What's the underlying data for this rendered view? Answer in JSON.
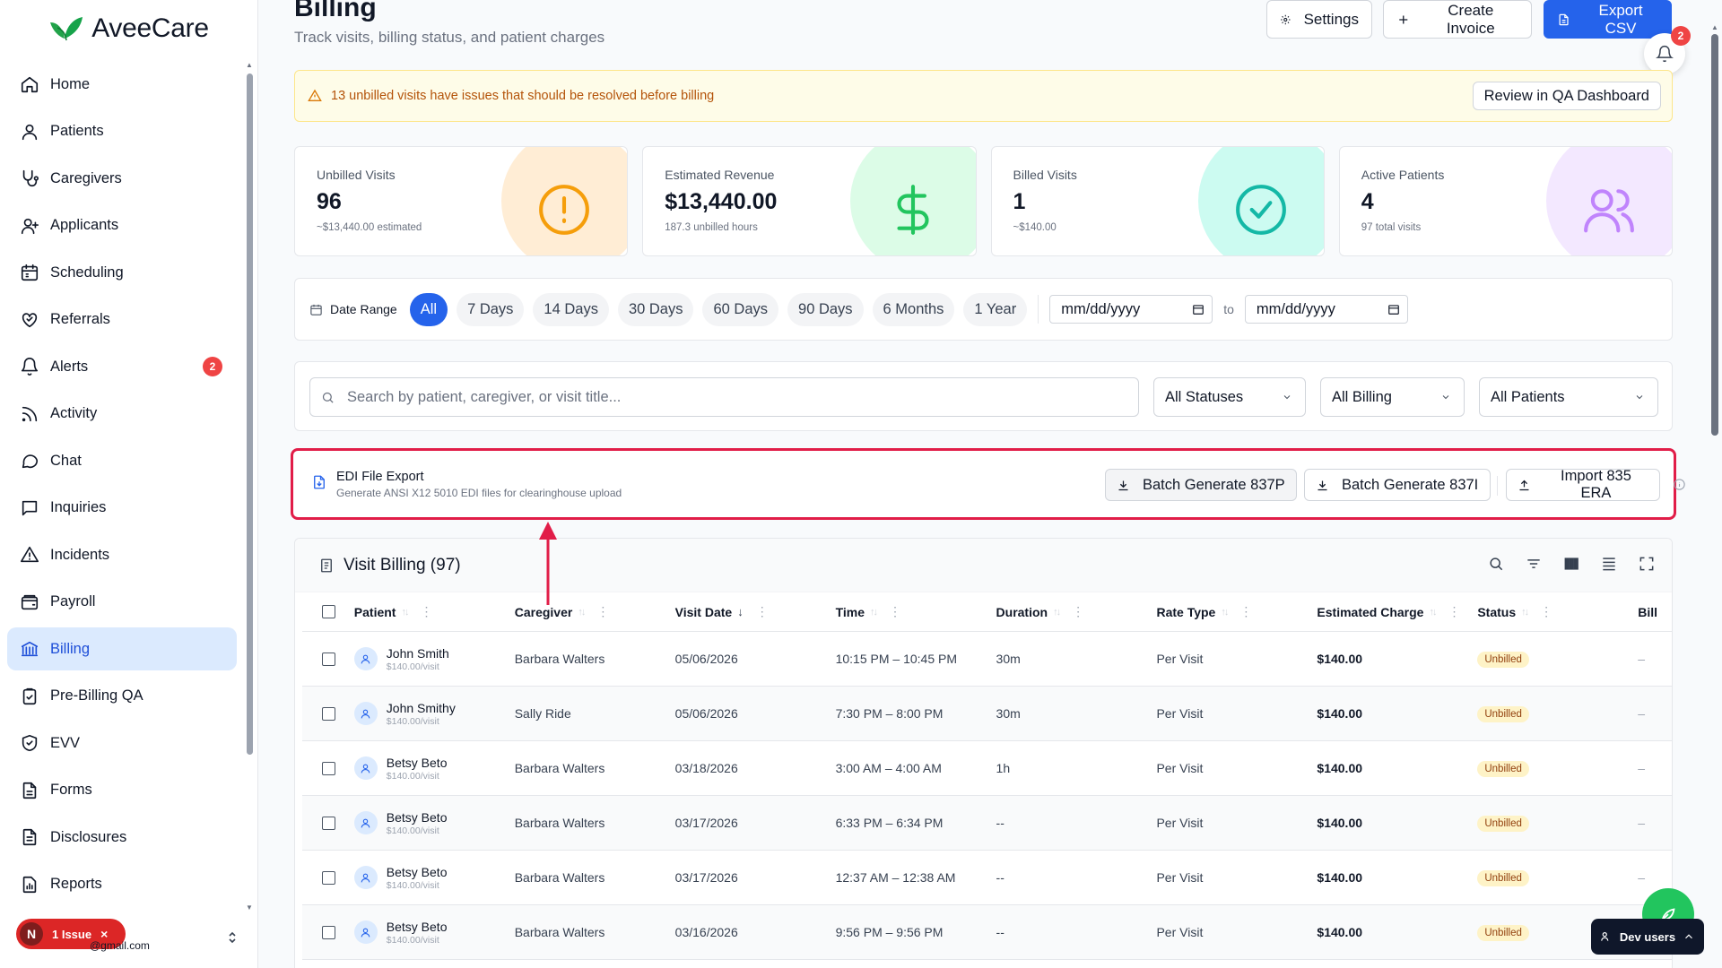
{
  "brand": {
    "name": "AveeCare"
  },
  "sidebar": {
    "items": [
      {
        "label": "Home",
        "icon": "home-icon"
      },
      {
        "label": "Patients",
        "icon": "user-icon"
      },
      {
        "label": "Caregivers",
        "icon": "stethoscope-icon"
      },
      {
        "label": "Applicants",
        "icon": "user-plus-icon"
      },
      {
        "label": "Scheduling",
        "icon": "calendar-icon"
      },
      {
        "label": "Referrals",
        "icon": "handshake-icon"
      },
      {
        "label": "Alerts",
        "icon": "bell-icon",
        "badge": "2"
      },
      {
        "label": "Activity",
        "icon": "rss-icon"
      },
      {
        "label": "Chat",
        "icon": "chat-bubble-icon"
      },
      {
        "label": "Inquiries",
        "icon": "message-square-icon"
      },
      {
        "label": "Incidents",
        "icon": "alert-triangle-icon"
      },
      {
        "label": "Payroll",
        "icon": "wallet-icon"
      },
      {
        "label": "Billing",
        "icon": "bank-icon",
        "active": true
      },
      {
        "label": "Pre-Billing QA",
        "icon": "clipboard-check-icon"
      },
      {
        "label": "EVV",
        "icon": "shield-check-icon"
      },
      {
        "label": "Forms",
        "icon": "file-text-icon"
      },
      {
        "label": "Disclosures",
        "icon": "file-icon"
      },
      {
        "label": "Reports",
        "icon": "report-icon"
      }
    ],
    "issue": {
      "avatar": "N",
      "label": "1 Issue",
      "close": "×"
    },
    "user_email": "@gmail.com"
  },
  "header": {
    "title": "Billing",
    "subtitle": "Track visits, billing status, and patient charges",
    "settings_label": "Settings",
    "create_invoice_label": "Create Invoice",
    "export_csv_label": "Export CSV",
    "notifications_count": "2"
  },
  "warning": {
    "text": "13 unbilled visits have issues that should be resolved before billing",
    "button": "Review in QA Dashboard"
  },
  "stats": [
    {
      "label": "Unbilled Visits",
      "value": "96",
      "sub": "~$13,440.00 estimated",
      "icon": "alert-circle-icon",
      "color": "#f59e0b",
      "bg": "#ffedd5"
    },
    {
      "label": "Estimated Revenue",
      "value": "$13,440.00",
      "sub": "187.3 unbilled hours",
      "icon": "dollar-icon",
      "color": "#22c55e",
      "bg": "#dcfce7"
    },
    {
      "label": "Billed Visits",
      "value": "1",
      "sub": "~$140.00",
      "icon": "check-circle-icon",
      "color": "#14b8a6",
      "bg": "#ccfbf1"
    },
    {
      "label": "Active Patients",
      "value": "4",
      "sub": "97 total visits",
      "icon": "users-icon",
      "color": "#c084fc",
      "bg": "#f3e8ff"
    }
  ],
  "date_range": {
    "label": "Date Range",
    "options": [
      "All",
      "7 Days",
      "14 Days",
      "30 Days",
      "60 Days",
      "90 Days",
      "6 Months",
      "1 Year"
    ],
    "selected": "All",
    "from_placeholder": "mm/dd/yyyy",
    "to_label": "to",
    "to_placeholder": "mm/dd/yyyy"
  },
  "filters": {
    "search_placeholder": "Search by patient, caregiver, or visit title...",
    "status": "All Statuses",
    "billing": "All Billing",
    "patients": "All Patients"
  },
  "edi": {
    "title": "EDI File Export",
    "subtitle": "Generate ANSI X12 5010 EDI files for clearinghouse upload",
    "btn_837p": "Batch Generate 837P",
    "btn_837i": "Batch Generate 837I",
    "btn_835": "Import 835 ERA"
  },
  "table": {
    "title": "Visit Billing (97)",
    "columns": [
      "Patient",
      "Caregiver",
      "Visit Date",
      "Time",
      "Duration",
      "Rate Type",
      "Estimated Charge",
      "Status",
      "Bill"
    ],
    "rows": [
      {
        "patient": "John Smith",
        "rate": "$140.00/visit",
        "caregiver": "Barbara Walters",
        "date": "05/06/2026",
        "time": "10:15 PM – 10:45 PM",
        "duration": "30m",
        "rate_type": "Per Visit",
        "charge": "$140.00",
        "status": "Unbilled",
        "bill": "–"
      },
      {
        "patient": "John Smithy",
        "rate": "$140.00/visit",
        "caregiver": "Sally Ride",
        "date": "05/06/2026",
        "time": "7:30 PM – 8:00 PM",
        "duration": "30m",
        "rate_type": "Per Visit",
        "charge": "$140.00",
        "status": "Unbilled",
        "bill": "–"
      },
      {
        "patient": "Betsy Beto",
        "rate": "$140.00/visit",
        "caregiver": "Barbara Walters",
        "date": "03/18/2026",
        "time": "3:00 AM – 4:00 AM",
        "duration": "1h",
        "rate_type": "Per Visit",
        "charge": "$140.00",
        "status": "Unbilled",
        "bill": "–"
      },
      {
        "patient": "Betsy Beto",
        "rate": "$140.00/visit",
        "caregiver": "Barbara Walters",
        "date": "03/17/2026",
        "time": "6:33 PM – 6:34 PM",
        "duration": "--",
        "rate_type": "Per Visit",
        "charge": "$140.00",
        "status": "Unbilled",
        "bill": "–"
      },
      {
        "patient": "Betsy Beto",
        "rate": "$140.00/visit",
        "caregiver": "Barbara Walters",
        "date": "03/17/2026",
        "time": "12:37 AM – 12:38 AM",
        "duration": "--",
        "rate_type": "Per Visit",
        "charge": "$140.00",
        "status": "Unbilled",
        "bill": "–"
      },
      {
        "patient": "Betsy Beto",
        "rate": "$140.00/visit",
        "caregiver": "Barbara Walters",
        "date": "03/16/2026",
        "time": "9:56 PM – 9:56 PM",
        "duration": "--",
        "rate_type": "Per Visit",
        "charge": "$140.00",
        "status": "Unbilled",
        "bill": "–"
      }
    ]
  },
  "dev_users_label": "Dev users",
  "colors": {
    "accent": "#2563eb",
    "annotation": "#e11d48"
  }
}
